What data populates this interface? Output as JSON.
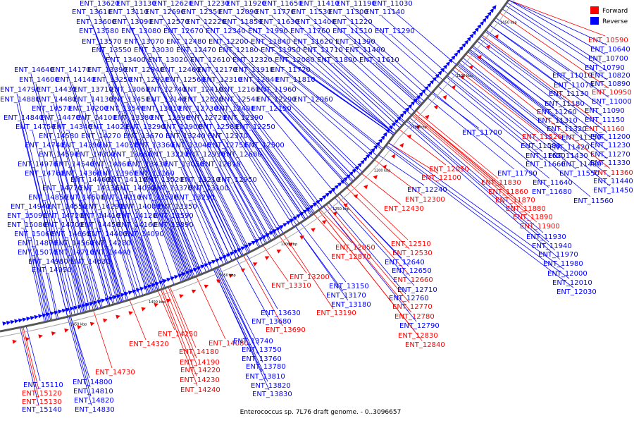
{
  "caption": "Enterococcus sp. 7L76 draft genome. - 0..3096657",
  "legend": [
    {
      "label": "Forward",
      "color": "#ff0000"
    },
    {
      "label": "Reverse",
      "color": "#0000ff"
    }
  ],
  "ticks": [
    "1050 kbp",
    "1100 kbp",
    "1150 kbp",
    "1200 kbp",
    "1250 kbp",
    "1300 kbp",
    "1350 kbp",
    "1400 kbp",
    "1450 kbp"
  ],
  "colors": {
    "forward": "#ff0000",
    "reverse": "#0000ff",
    "backbone": "#555555"
  },
  "labels": [
    {
      "t": "ENT_13620",
      "s": "r"
    },
    {
      "t": "ENT_13130",
      "s": "r"
    },
    {
      "t": "ENT_12620",
      "s": "r"
    },
    {
      "t": "ENT_12230",
      "s": "r"
    },
    {
      "t": "ENT_11920",
      "s": "r"
    },
    {
      "t": "ENT_11650",
      "s": "r"
    },
    {
      "t": "ENT_11410",
      "s": "r"
    },
    {
      "t": "ENT_11190",
      "s": "r"
    },
    {
      "t": "ENT_11030",
      "s": "r"
    },
    {
      "t": "ENT_13610",
      "s": "r"
    },
    {
      "t": "ENT_13110",
      "s": "r"
    },
    {
      "t": "ENT_12690",
      "s": "r"
    },
    {
      "t": "ENT_12350",
      "s": "r"
    },
    {
      "t": "ENT_12090",
      "s": "r"
    },
    {
      "t": "ENT_11770",
      "s": "r"
    },
    {
      "t": "ENT_11530",
      "s": "r"
    },
    {
      "t": "ENT_11300",
      "s": "r"
    },
    {
      "t": "ENT_11140",
      "s": "r"
    },
    {
      "t": "ENT_13600",
      "s": "r"
    },
    {
      "t": "ENT_13090",
      "s": "r"
    },
    {
      "t": "ENT_12570",
      "s": "r"
    },
    {
      "t": "ENT_12220",
      "s": "r"
    },
    {
      "t": "ENT_11850",
      "s": "r"
    },
    {
      "t": "ENT_11630",
      "s": "r"
    },
    {
      "t": "ENT_11400",
      "s": "r"
    },
    {
      "t": "ENT_11220",
      "s": "r"
    },
    {
      "t": "ENT_13580",
      "s": "r"
    },
    {
      "t": "ENT_13080",
      "s": "r"
    },
    {
      "t": "ENT_12670",
      "s": "r"
    },
    {
      "t": "ENT_12340",
      "s": "r"
    },
    {
      "t": "ENT_11990",
      "s": "r"
    },
    {
      "t": "ENT_11760",
      "s": "r"
    },
    {
      "t": "ENT_11510",
      "s": "r"
    },
    {
      "t": "ENT_11290",
      "s": "r"
    },
    {
      "t": "ENT_13570",
      "s": "r"
    },
    {
      "t": "ENT_13070",
      "s": "r"
    },
    {
      "t": "ENT_12480",
      "s": "r"
    },
    {
      "t": "ENT_12200",
      "s": "r"
    },
    {
      "t": "ENT_11840",
      "s": "r"
    },
    {
      "t": "ENT_11620",
      "s": "r"
    },
    {
      "t": "ENT_11390",
      "s": "r"
    },
    {
      "t": "ENT_13550",
      "s": "r"
    },
    {
      "t": "ENT_13030",
      "s": "r"
    },
    {
      "t": "ENT_12470",
      "s": "r"
    },
    {
      "t": "ENT_12180",
      "s": "r"
    },
    {
      "t": "ENT_11950",
      "s": "r"
    },
    {
      "t": "ENT_11710",
      "s": "r"
    },
    {
      "t": "ENT_11490",
      "s": "r"
    },
    {
      "t": "ENT_13400",
      "s": "r"
    },
    {
      "t": "ENT_13020",
      "s": "r"
    },
    {
      "t": "ENT_12610",
      "s": "r"
    },
    {
      "t": "ENT_12320",
      "s": "r"
    },
    {
      "t": "ENT_12080",
      "s": "r"
    },
    {
      "t": "ENT_11800",
      "s": "r"
    },
    {
      "t": "ENT_11610",
      "s": "r"
    },
    {
      "t": "ENT_14640",
      "s": "r"
    },
    {
      "t": "ENT_14170",
      "s": "r"
    },
    {
      "t": "ENT_13390",
      "s": "r"
    },
    {
      "t": "ENT_12940",
      "s": "r"
    },
    {
      "t": "ENT_12460",
      "s": "r"
    },
    {
      "t": "ENT_12170",
      "s": "r"
    },
    {
      "t": "ENT_11910",
      "s": "r"
    },
    {
      "t": "ENT_11720",
      "s": "r"
    },
    {
      "t": "ENT_14600",
      "s": "r"
    },
    {
      "t": "ENT_14140",
      "s": "r"
    },
    {
      "t": "ENT_13250",
      "s": "r"
    },
    {
      "t": "ENT_12920",
      "s": "r"
    },
    {
      "t": "ENT_12560",
      "s": "r"
    },
    {
      "t": "ENT_12310",
      "s": "r"
    },
    {
      "t": "ENT_12040",
      "s": "r"
    },
    {
      "t": "ENT_11810",
      "s": "r"
    },
    {
      "t": "ENT_14790",
      "s": "r"
    },
    {
      "t": "ENT_14430",
      "s": "r"
    },
    {
      "t": "ENT_13710",
      "s": "r"
    },
    {
      "t": "ENT_13060",
      "s": "r"
    },
    {
      "t": "ENT_12740",
      "s": "r"
    },
    {
      "t": "ENT_12410",
      "s": "r"
    },
    {
      "t": "ENT_12160",
      "s": "r"
    },
    {
      "t": "ENT_11960",
      "s": "r"
    },
    {
      "t": "ENT_14880",
      "s": "r"
    },
    {
      "t": "ENT_14480",
      "s": "r"
    },
    {
      "t": "ENT_14130",
      "s": "r"
    },
    {
      "t": "ENT_13450",
      "s": "r"
    },
    {
      "t": "ENT_13140",
      "s": "r"
    },
    {
      "t": "ENT_12820",
      "s": "r"
    },
    {
      "t": "ENT_12540",
      "s": "r"
    },
    {
      "t": "ENT_12290",
      "s": "r"
    },
    {
      "t": "ENT_12060",
      "s": "r"
    },
    {
      "t": "ENT_14570",
      "s": "r"
    },
    {
      "t": "ENT_14200",
      "s": "r"
    },
    {
      "t": "ENT_13540",
      "s": "r"
    },
    {
      "t": "ENT_13010",
      "s": "r"
    },
    {
      "t": "ENT_12730",
      "s": "r"
    },
    {
      "t": "ENT_12400",
      "s": "r"
    },
    {
      "t": "ENT_12150",
      "s": "r"
    },
    {
      "t": "ENT_14840",
      "s": "r"
    },
    {
      "t": "ENT_14470",
      "s": "r"
    },
    {
      "t": "ENT_14100",
      "s": "r"
    },
    {
      "t": "ENT_13380",
      "s": "r"
    },
    {
      "t": "ENT_12990",
      "s": "r"
    },
    {
      "t": "ENT_12720",
      "s": "r"
    },
    {
      "t": "ENT_12390",
      "s": "r"
    },
    {
      "t": "ENT_14750",
      "s": "r"
    },
    {
      "t": "ENT_14340",
      "s": "r"
    },
    {
      "t": "ENT_14020",
      "s": "r"
    },
    {
      "t": "ENT_13290",
      "s": "r"
    },
    {
      "t": "ENT_12900",
      "s": "r"
    },
    {
      "t": "ENT_12580",
      "s": "r"
    },
    {
      "t": "ENT_12250",
      "s": "r"
    },
    {
      "t": "ENT_14580",
      "s": "r"
    },
    {
      "t": "ENT_14270",
      "s": "r"
    },
    {
      "t": "ENT_13670",
      "s": "r"
    },
    {
      "t": "ENT_13240",
      "s": "r"
    },
    {
      "t": "ENT_12370",
      "s": "r"
    },
    {
      "t": "ENT_14740",
      "s": "r"
    },
    {
      "t": "ENT_14390",
      "s": "r"
    },
    {
      "t": "ENT_14050",
      "s": "r"
    },
    {
      "t": "ENT_13360",
      "s": "r"
    },
    {
      "t": "ENT_13040",
      "s": "r"
    },
    {
      "t": "ENT_12750",
      "s": "r"
    },
    {
      "t": "ENT_12500",
      "s": "r"
    },
    {
      "t": "ENT_14590",
      "s": "r"
    },
    {
      "t": "ENT_14300",
      "s": "r"
    },
    {
      "t": "ENT_13660",
      "s": "r"
    },
    {
      "t": "ENT_13220",
      "s": "r"
    },
    {
      "t": "ENT_12930",
      "s": "r"
    },
    {
      "t": "ENT_12680",
      "s": "r"
    },
    {
      "t": "ENT_14970",
      "s": "r"
    },
    {
      "t": "ENT_14540",
      "s": "r"
    },
    {
      "t": "ENT_14060",
      "s": "r"
    },
    {
      "t": "ENT_13430",
      "s": "r"
    },
    {
      "t": "ENT_13050",
      "s": "r"
    },
    {
      "t": "ENT_12810",
      "s": "r"
    },
    {
      "t": "ENT_14760",
      "s": "r"
    },
    {
      "t": "ENT_14360",
      "s": "r"
    },
    {
      "t": "ENT_13960",
      "s": "r"
    },
    {
      "t": "ENT_13160",
      "s": "r"
    },
    {
      "t": "ENT_14460",
      "s": "r"
    },
    {
      "t": "ENT_14110",
      "s": "r"
    },
    {
      "t": "ENT_13520",
      "s": "r"
    },
    {
      "t": "ENT_13210",
      "s": "r"
    },
    {
      "t": "ENT_12950",
      "s": "r"
    },
    {
      "t": "ENT_14770",
      "s": "r"
    },
    {
      "t": "ENT_14330",
      "s": "r"
    },
    {
      "t": "ENT_14030",
      "s": "r"
    },
    {
      "t": "ENT_13370",
      "s": "r"
    },
    {
      "t": "ENT_13100",
      "s": "r"
    },
    {
      "t": "ENT_14850",
      "s": "r"
    },
    {
      "t": "ENT_14500",
      "s": "r"
    },
    {
      "t": "ENT_14210",
      "s": "r"
    },
    {
      "t": "ENT_13530",
      "s": "r"
    },
    {
      "t": "ENT_13230",
      "s": "r"
    },
    {
      "t": "ENT_14940",
      "s": "r"
    },
    {
      "t": "ENT_14550",
      "s": "r"
    },
    {
      "t": "ENT_14290",
      "s": "r"
    },
    {
      "t": "ENT_14000",
      "s": "r"
    },
    {
      "t": "ENT_13350",
      "s": "r"
    },
    {
      "t": "ENT_15090",
      "s": "r"
    },
    {
      "t": "ENT_14720",
      "s": "r"
    },
    {
      "t": "ENT_14410",
      "s": "r"
    },
    {
      "t": "ENT_14120",
      "s": "r"
    },
    {
      "t": "ENT_13590",
      "s": "r"
    },
    {
      "t": "ENT_15080",
      "s": "r"
    },
    {
      "t": "ENT_14700",
      "s": "r"
    },
    {
      "t": "ENT_14450",
      "s": "r"
    },
    {
      "t": "ENT_14160",
      "s": "r"
    },
    {
      "t": "ENT_13890",
      "s": "r"
    },
    {
      "t": "ENT_15060",
      "s": "r"
    },
    {
      "t": "ENT_14660",
      "s": "r"
    },
    {
      "t": "ENT_14400",
      "s": "r"
    },
    {
      "t": "ENT_14090",
      "s": "r"
    },
    {
      "t": "ENT_14870",
      "s": "r"
    },
    {
      "t": "ENT_14560",
      "s": "r"
    },
    {
      "t": "ENT_14280",
      "s": "r"
    },
    {
      "t": "ENT_15070",
      "s": "r"
    },
    {
      "t": "ENT_14710",
      "s": "r"
    },
    {
      "t": "ENT_14440",
      "s": "r"
    },
    {
      "t": "ENT_14980",
      "s": "r"
    },
    {
      "t": "ENT_14630",
      "s": "r"
    },
    {
      "t": "ENT_14950",
      "s": "r"
    },
    {
      "t": "ENT_10590",
      "s": "f"
    },
    {
      "t": "ENT_10640",
      "s": "r"
    },
    {
      "t": "ENT_10700",
      "s": "r"
    },
    {
      "t": "ENT_10790",
      "s": "r"
    },
    {
      "t": "ENT_10820",
      "s": "r"
    },
    {
      "t": "ENT_11010",
      "s": "r"
    },
    {
      "t": "ENT_10890",
      "s": "r"
    },
    {
      "t": "ENT_11070",
      "s": "r"
    },
    {
      "t": "ENT_10950",
      "s": "f"
    },
    {
      "t": "ENT_11130",
      "s": "r"
    },
    {
      "t": "ENT_11000",
      "s": "r"
    },
    {
      "t": "ENT_11180",
      "s": "r"
    },
    {
      "t": "ENT_11090",
      "s": "r"
    },
    {
      "t": "ENT_11260",
      "s": "r"
    },
    {
      "t": "ENT_11150",
      "s": "r"
    },
    {
      "t": "ENT_11310",
      "s": "r"
    },
    {
      "t": "ENT_11160",
      "s": "f"
    },
    {
      "t": "ENT_11320",
      "s": "r"
    },
    {
      "t": "ENT_11200",
      "s": "r"
    },
    {
      "t": "ENT_11700",
      "s": "r"
    },
    {
      "t": "ENT_11520",
      "s": "f"
    },
    {
      "t": "ENT_11350",
      "s": "r"
    },
    {
      "t": "ENT_11580",
      "s": "r"
    },
    {
      "t": "ENT_11420",
      "s": "r"
    },
    {
      "t": "ENT_11230",
      "s": "r"
    },
    {
      "t": "ENT_11620",
      "s": "r"
    },
    {
      "t": "ENT_11430",
      "s": "r"
    },
    {
      "t": "ENT_11270",
      "s": "r"
    },
    {
      "t": "ENT_12050",
      "s": "f"
    },
    {
      "t": "ENT_11660",
      "s": "r"
    },
    {
      "t": "ENT_11480",
      "s": "r"
    },
    {
      "t": "ENT_11330",
      "s": "r"
    },
    {
      "t": "ENT_12100",
      "s": "f"
    },
    {
      "t": "ENT_11790",
      "s": "r"
    },
    {
      "t": "ENT_11550",
      "s": "r"
    },
    {
      "t": "ENT_11360",
      "s": "f"
    },
    {
      "t": "ENT_11830",
      "s": "f"
    },
    {
      "t": "ENT_11640",
      "s": "r"
    },
    {
      "t": "ENT_11440",
      "s": "r"
    },
    {
      "t": "ENT_12240",
      "s": "r"
    },
    {
      "t": "ENT_11860",
      "s": "f"
    },
    {
      "t": "ENT_11680",
      "s": "r"
    },
    {
      "t": "ENT_11450",
      "s": "r"
    },
    {
      "t": "ENT_12300",
      "s": "f"
    },
    {
      "t": "ENT_11870",
      "s": "f"
    },
    {
      "t": "ENT_11560",
      "s": "r"
    },
    {
      "t": "ENT_12430",
      "s": "f"
    },
    {
      "t": "ENT_11880",
      "s": "f"
    },
    {
      "t": "ENT_11890",
      "s": "f"
    },
    {
      "t": "ENT_11900",
      "s": "f"
    },
    {
      "t": "ENT_11930",
      "s": "r"
    },
    {
      "t": "ENT_12510",
      "s": "f"
    },
    {
      "t": "ENT_11940",
      "s": "r"
    },
    {
      "t": "ENT_12850",
      "s": "f"
    },
    {
      "t": "ENT_12530",
      "s": "f"
    },
    {
      "t": "ENT_11970",
      "s": "r"
    },
    {
      "t": "ENT_12870",
      "s": "f"
    },
    {
      "t": "ENT_12640",
      "s": "r"
    },
    {
      "t": "ENT_11980",
      "s": "r"
    },
    {
      "t": "ENT_12650",
      "s": "r"
    },
    {
      "t": "ENT_12000",
      "s": "r"
    },
    {
      "t": "ENT_13200",
      "s": "f"
    },
    {
      "t": "ENT_12660",
      "s": "f"
    },
    {
      "t": "ENT_12010",
      "s": "r"
    },
    {
      "t": "ENT_13310",
      "s": "f"
    },
    {
      "t": "ENT_13150",
      "s": "r"
    },
    {
      "t": "ENT_12710",
      "s": "r"
    },
    {
      "t": "ENT_12030",
      "s": "r"
    },
    {
      "t": "ENT_13170",
      "s": "r"
    },
    {
      "t": "ENT_12760",
      "s": "r"
    },
    {
      "t": "ENT_13180",
      "s": "r"
    },
    {
      "t": "ENT_12770",
      "s": "f"
    },
    {
      "t": "ENT_13190",
      "s": "f"
    },
    {
      "t": "ENT_12780",
      "s": "f"
    },
    {
      "t": "ENT_13630",
      "s": "r"
    },
    {
      "t": "ENT_12790",
      "s": "r"
    },
    {
      "t": "ENT_13680",
      "s": "r"
    },
    {
      "t": "ENT_13690",
      "s": "f"
    },
    {
      "t": "ENT_12830",
      "s": "f"
    },
    {
      "t": "ENT_14250",
      "s": "f"
    },
    {
      "t": "ENT_14080",
      "s": "f"
    },
    {
      "t": "ENT_13740",
      "s": "r"
    },
    {
      "t": "ENT_12840",
      "s": "f"
    },
    {
      "t": "ENT_14320",
      "s": "f"
    },
    {
      "t": "ENT_14180",
      "s": "f"
    },
    {
      "t": "ENT_13750",
      "s": "r"
    },
    {
      "t": "ENT_14190",
      "s": "f"
    },
    {
      "t": "ENT_13760",
      "s": "r"
    },
    {
      "t": "ENT_14730",
      "s": "f"
    },
    {
      "t": "ENT_14220",
      "s": "f"
    },
    {
      "t": "ENT_13780",
      "s": "r"
    },
    {
      "t": "ENT_14800",
      "s": "r"
    },
    {
      "t": "ENT_14230",
      "s": "f"
    },
    {
      "t": "ENT_13810",
      "s": "r"
    },
    {
      "t": "ENT_15110",
      "s": "r"
    },
    {
      "t": "ENT_14810",
      "s": "r"
    },
    {
      "t": "ENT_14240",
      "s": "f"
    },
    {
      "t": "ENT_13820",
      "s": "r"
    },
    {
      "t": "ENT_15120",
      "s": "f"
    },
    {
      "t": "ENT_13830",
      "s": "r"
    },
    {
      "t": "ENT_15130",
      "s": "f"
    },
    {
      "t": "ENT_14820",
      "s": "r"
    },
    {
      "t": "ENT_15140",
      "s": "r"
    },
    {
      "t": "ENT_14830",
      "s": "r"
    }
  ]
}
